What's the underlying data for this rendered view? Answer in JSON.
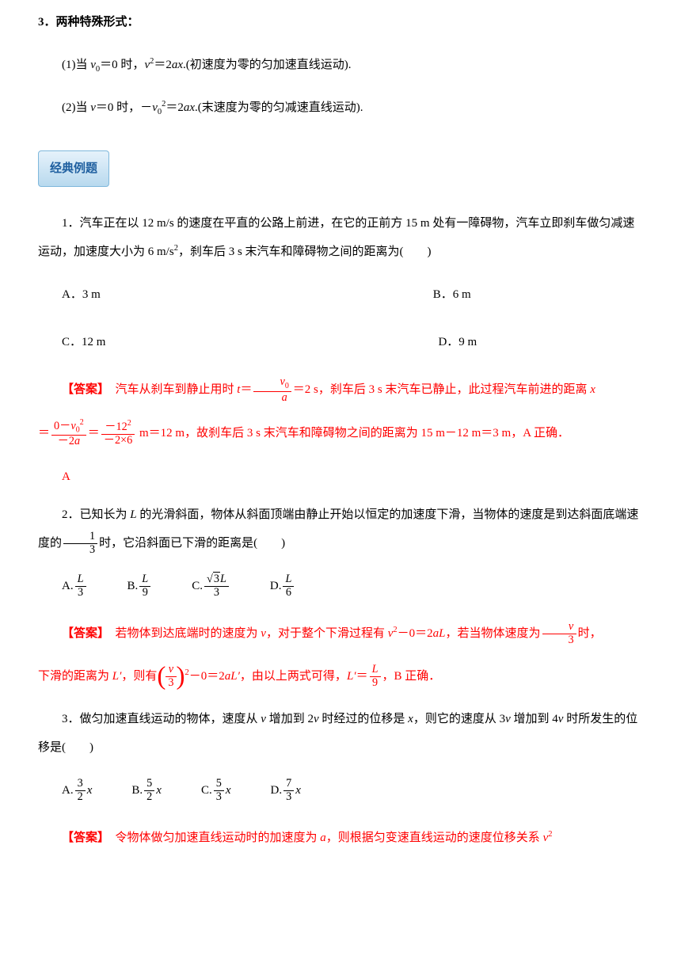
{
  "colors": {
    "text": "#000000",
    "answer": "#ff0000",
    "badge_bg_top": "#e6f2fb",
    "badge_bg_bottom": "#b8d9ee",
    "badge_border": "#7fb8dc",
    "badge_text": "#2060a0"
  },
  "section3": {
    "heading": "3．两种特殊形式：",
    "line1_pre": "(1)当 ",
    "line1_v0": "v",
    "line1_sub": "0",
    "line1_mid": "＝0 时，",
    "line1_v": "v",
    "line1_sup": "2",
    "line1_eq": "＝2",
    "line1_a": "a",
    "line1_x": "x",
    "line1_post": ".(初速度为零的匀加速直线运动).",
    "line2_pre": "(2)当 ",
    "line2_v": "v",
    "line2_mid": "＝0 时，－",
    "line2_v0": "v",
    "line2_sub": "0",
    "line2_sup": "2",
    "line2_eq": "＝2",
    "line2_a": "a",
    "line2_x": "x",
    "line2_post": ".(末速度为零的匀减速直线运动)."
  },
  "badge": "经典例题",
  "q1": {
    "text_pre": "1．汽车正在以 12 m/s 的速度在平直的公路上前进，在它的正前方 15 m 处有一障碍物，汽车立即刹车做匀减速运动，加速度大小为 6 m/s",
    "sup": "2",
    "text_post": "，刹车后 3 s 末汽车和障碍物之间的距离为(　　)",
    "optA": "A．3 m",
    "optB": "B．6 m",
    "optC": "C．12 m",
    "optD": "D．9 m"
  },
  "a1": {
    "tag": "【答案】",
    "l1_a": "汽车从刹车到静止用时 ",
    "l1_t": "t",
    "l1_eq": "＝",
    "l1_num": "v₀",
    "l1_num_v": "v",
    "l1_num_0": "0",
    "l1_den": "a",
    "l1_b": "＝2 s，刹车后 3 s 末汽车已静止，此过程汽车前进的距离 ",
    "l1_x": "x",
    "l2_eq": "＝",
    "l2_num1a": "0－",
    "l2_num1_v": "v",
    "l2_num1_0": "0",
    "l2_num1_2": "2",
    "l2_den1": "－2a",
    "l2_den1_a": "－2",
    "l2_den1_b": "a",
    "l2_eq2": "＝",
    "l2_num2": "－12²",
    "l2_num2_a": "－12",
    "l2_num2_b": "2",
    "l2_den2": "－2×6",
    "l2_post": " m＝12 m，故刹车后 3 s 末汽车和障碍物之间的距离为 15 m－12 m＝3 m，A 正确．",
    "final": "A"
  },
  "q2": {
    "text_pre": "2．已知长为 ",
    "L": "L",
    "text_mid": " 的光滑斜面，物体从斜面顶端由静止开始以恒定的加速度下滑，当物体的速度是到达斜面底端速度的",
    "frac_num": "1",
    "frac_den": "3",
    "text_post": "时，它沿斜面已下滑的距离是(　　)",
    "optA_pre": "A.",
    "optA_num": "L",
    "optA_den": "3",
    "optB_pre": "B.",
    "optB_num": "L",
    "optB_den": "9",
    "optC_pre": "C.",
    "optC_num_sqrt": "3",
    "optC_num_L": "L",
    "optC_den": "3",
    "optD_pre": "D.",
    "optD_num": "L",
    "optD_den": "6"
  },
  "a2": {
    "tag": "【答案】",
    "l1_a": "若物体到达底端时的速度为 ",
    "l1_v": "v",
    "l1_b": "，对于整个下滑过程有 ",
    "l1_v2": "v",
    "l1_sup": "2",
    "l1_c": "－0＝2",
    "l1_aL": "aL",
    "l1_d": "，若当物体速度为",
    "l1_num": "v",
    "l1_den": "3",
    "l1_e": "时，",
    "l2_a": "下滑的距离为 ",
    "l2_Lp": "L′",
    "l2_b": "，则有",
    "l2_frac_num": "v",
    "l2_frac_den": "3",
    "l2_sup": "2",
    "l2_c": "－0＝2",
    "l2_aLp": "aL′",
    "l2_d": "，由以上两式可得，",
    "l2_Lp2": "L′",
    "l2_eq": "＝",
    "l2_num": "L",
    "l2_den": "9",
    "l2_e": "，B 正确．"
  },
  "q3": {
    "text_pre": "3．做匀加速直线运动的物体，速度从 ",
    "v1": "v",
    "text_mid1": " 增加到 2",
    "v2": "v",
    "text_mid2": " 时经过的位移是 ",
    "x": "x",
    "text_mid3": "，则它的速度从 3",
    "v3": "v",
    "text_mid4": " 增加到 4",
    "v4": "v",
    "text_post": " 时所发生的位移是(　　)",
    "optA_pre": "A.",
    "optA_num": "3",
    "optA_den": "2",
    "optA_x": "x",
    "optB_pre": "B.",
    "optB_num": "5",
    "optB_den": "2",
    "optB_x": "x",
    "optC_pre": "C.",
    "optC_num": "5",
    "optC_den": "3",
    "optC_x": "x",
    "optD_pre": "D.",
    "optD_num": "7",
    "optD_den": "3",
    "optD_x": "x"
  },
  "a3": {
    "tag": "【答案】",
    "text_a": "令物体做匀加速直线运动时的加速度为 ",
    "a": "a",
    "text_b": "，则根据匀变速直线运动的速度位移关系 ",
    "v": "v",
    "sup": "2"
  }
}
